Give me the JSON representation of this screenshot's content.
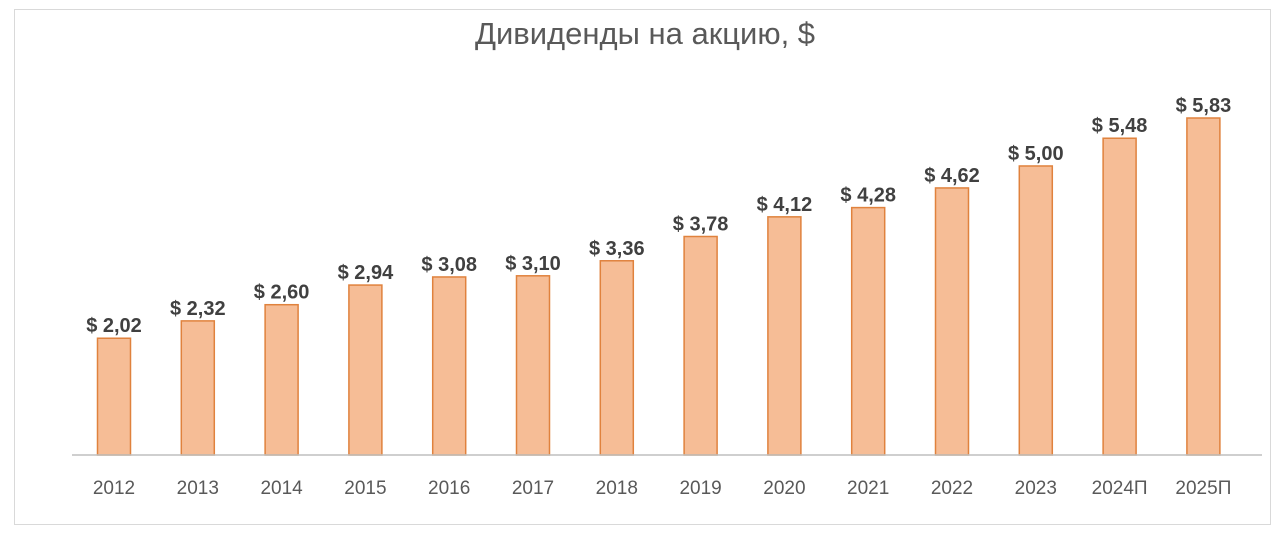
{
  "chart_data": {
    "type": "bar",
    "title": "Дивиденды на акцию, $",
    "categories": [
      "2012",
      "2013",
      "2014",
      "2015",
      "2016",
      "2017",
      "2018",
      "2019",
      "2020",
      "2021",
      "2022",
      "2023",
      "2024П",
      "2025П"
    ],
    "values": [
      2.02,
      2.32,
      2.6,
      2.94,
      3.08,
      3.1,
      3.36,
      3.78,
      4.12,
      4.28,
      4.62,
      5.0,
      5.48,
      5.83
    ],
    "data_labels": [
      "$ 2,02",
      "$ 2,32",
      "$ 2,60",
      "$ 2,94",
      "$ 3,08",
      "$ 3,10",
      "$ 3,36",
      "$ 3,78",
      "$ 4,12",
      "$ 4,28",
      "$ 4,62",
      "$ 5,00",
      "$ 5,48",
      "$ 5,83"
    ],
    "xlabel": "",
    "ylabel": "",
    "ylim": [
      0,
      5.83
    ],
    "grid": false,
    "legend": "none",
    "colors": {
      "bar_fill": "#f6bd96",
      "bar_stroke": "#e0823d",
      "text": "#404040"
    }
  }
}
